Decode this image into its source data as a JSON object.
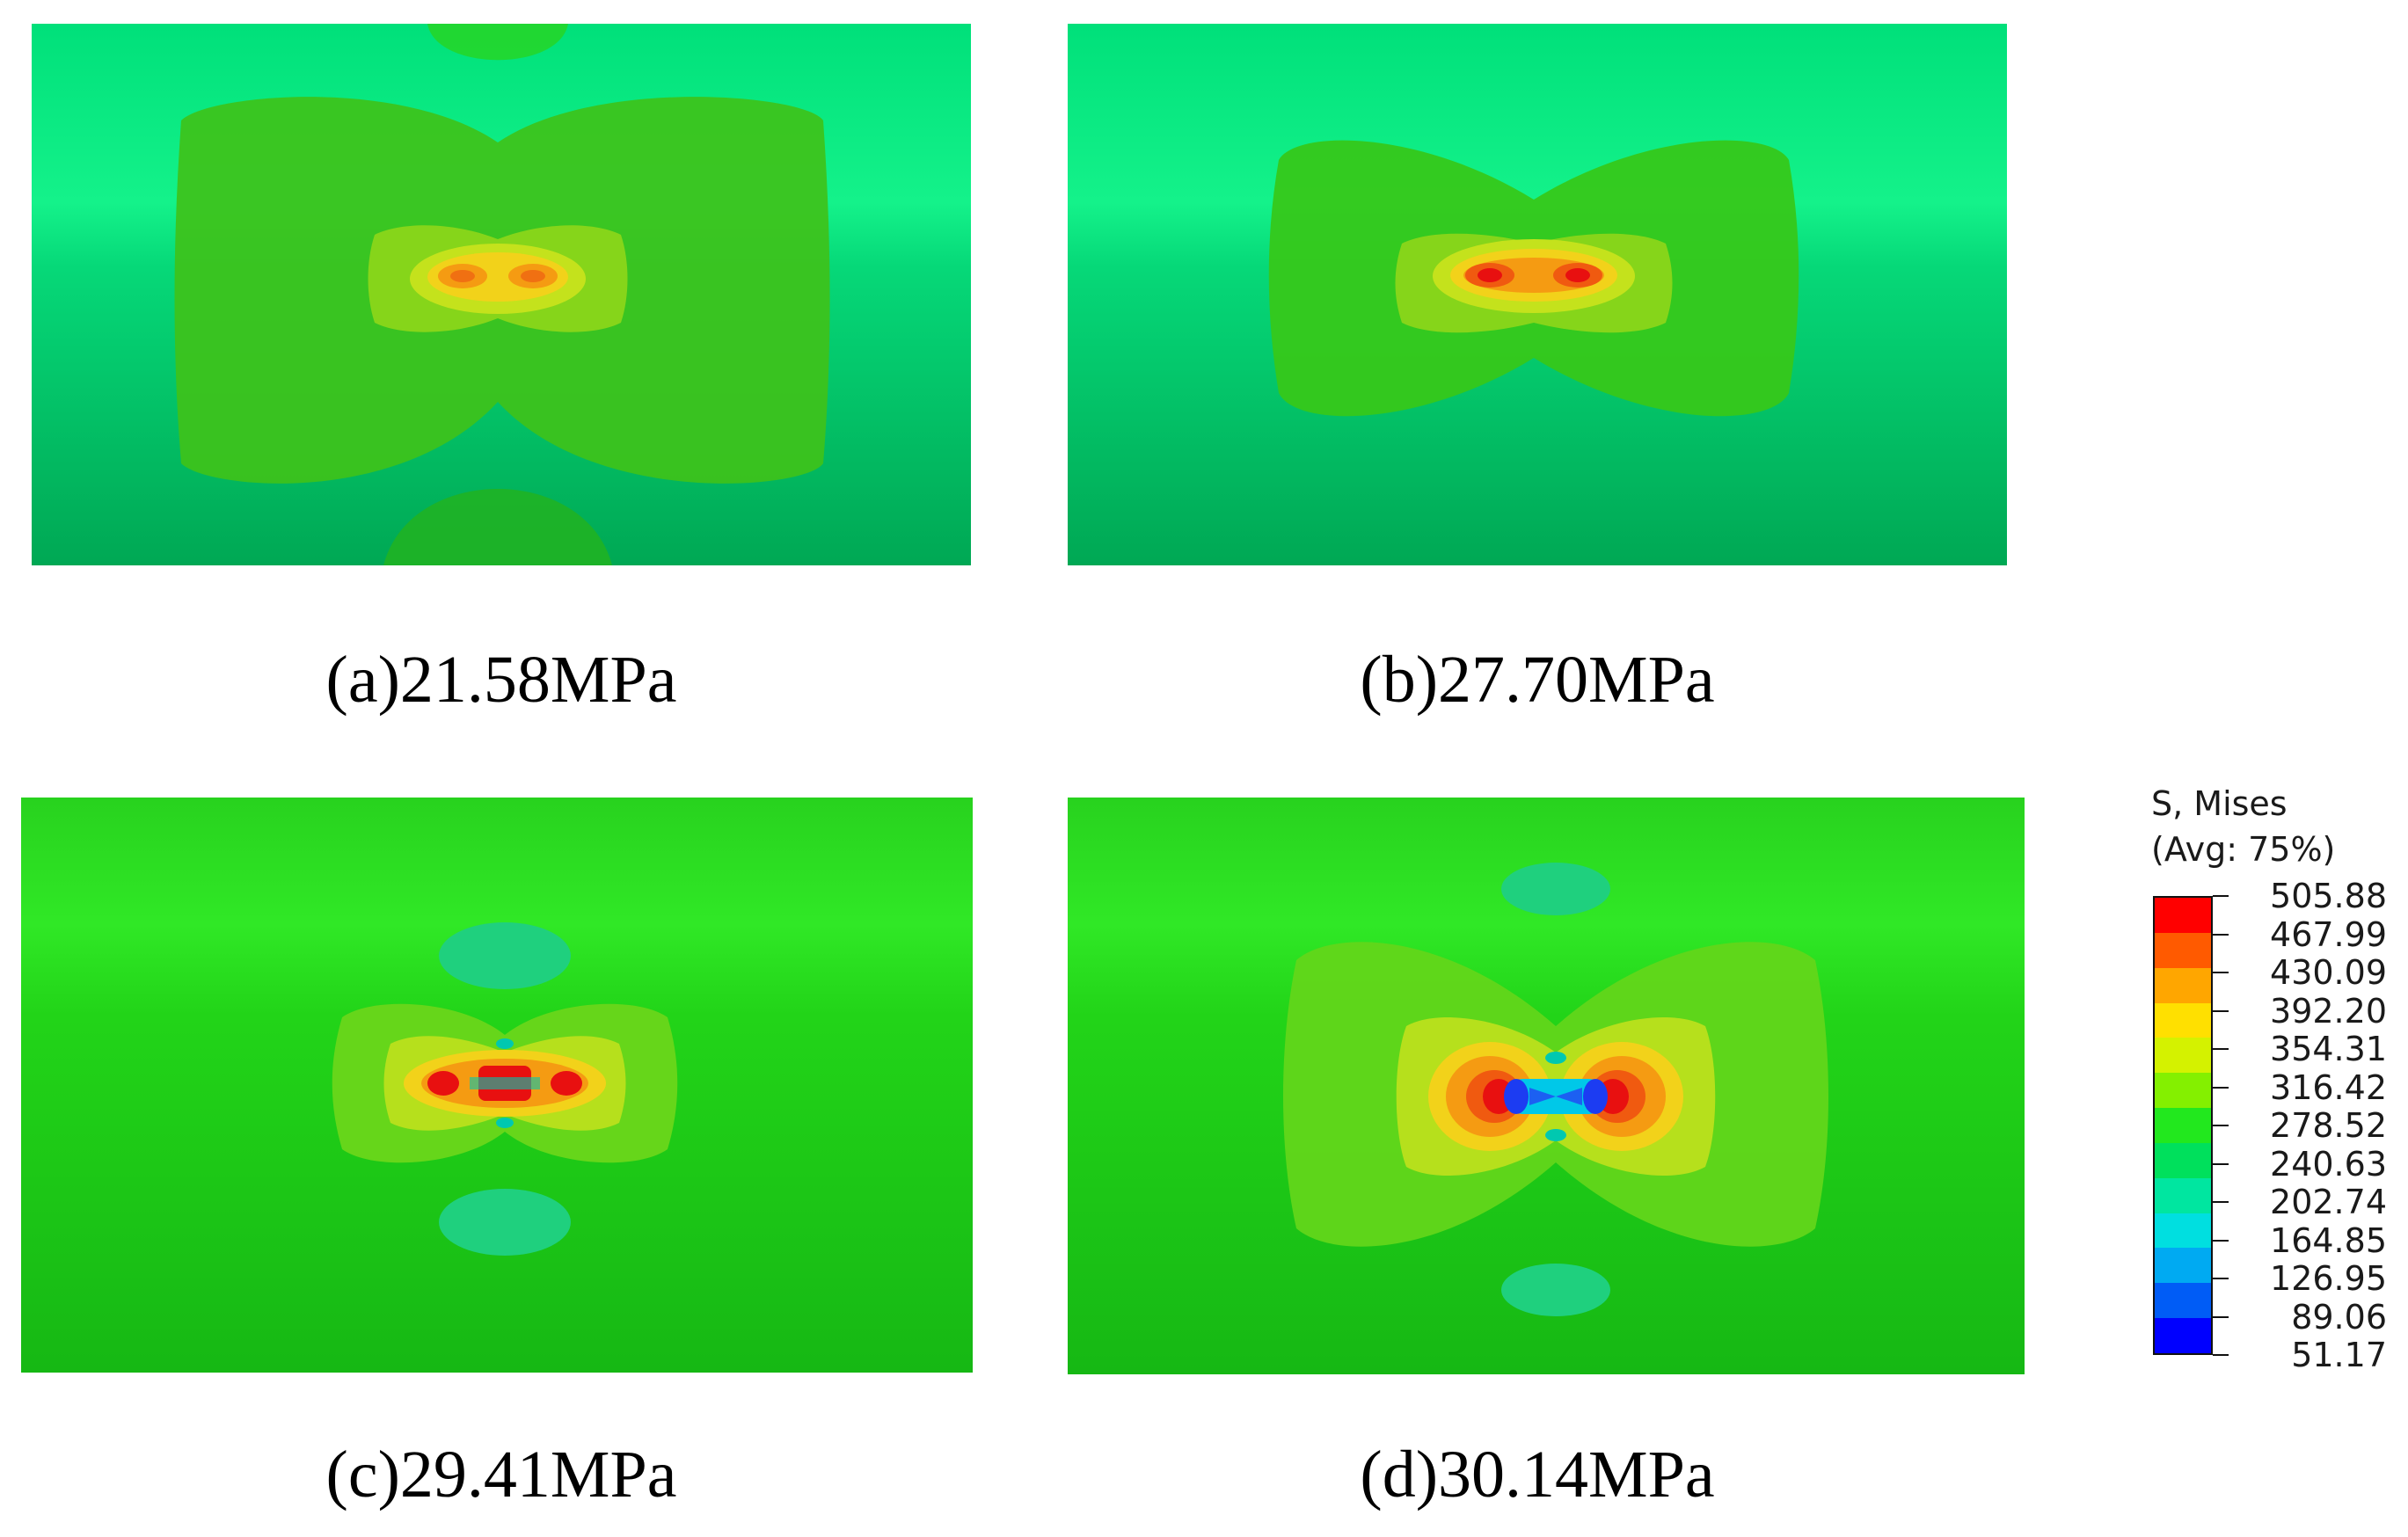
{
  "panels": [
    {
      "id": "a",
      "caption": "(a)21.58MPa"
    },
    {
      "id": "b",
      "caption": "(b)27.70MPa"
    },
    {
      "id": "c",
      "caption": "(c)29.41MPa"
    },
    {
      "id": "d",
      "caption": "(d)30.14MPa"
    }
  ],
  "legend": {
    "title_line1": "S, Mises",
    "title_line2": "(Avg: 75%)",
    "levels": [
      "505.88",
      "467.99",
      "430.09",
      "392.20",
      "354.31",
      "316.42",
      "278.52",
      "240.63",
      "202.74",
      "164.85",
      "126.95",
      "89.06",
      "51.17"
    ],
    "colors": [
      "#ff0000",
      "#ff5a00",
      "#ffa600",
      "#ffe000",
      "#d4f200",
      "#84f000",
      "#22e81e",
      "#00e05c",
      "#00e6a0",
      "#00dfe0",
      "#00aaf2",
      "#005cf6",
      "#0000ff"
    ]
  }
}
